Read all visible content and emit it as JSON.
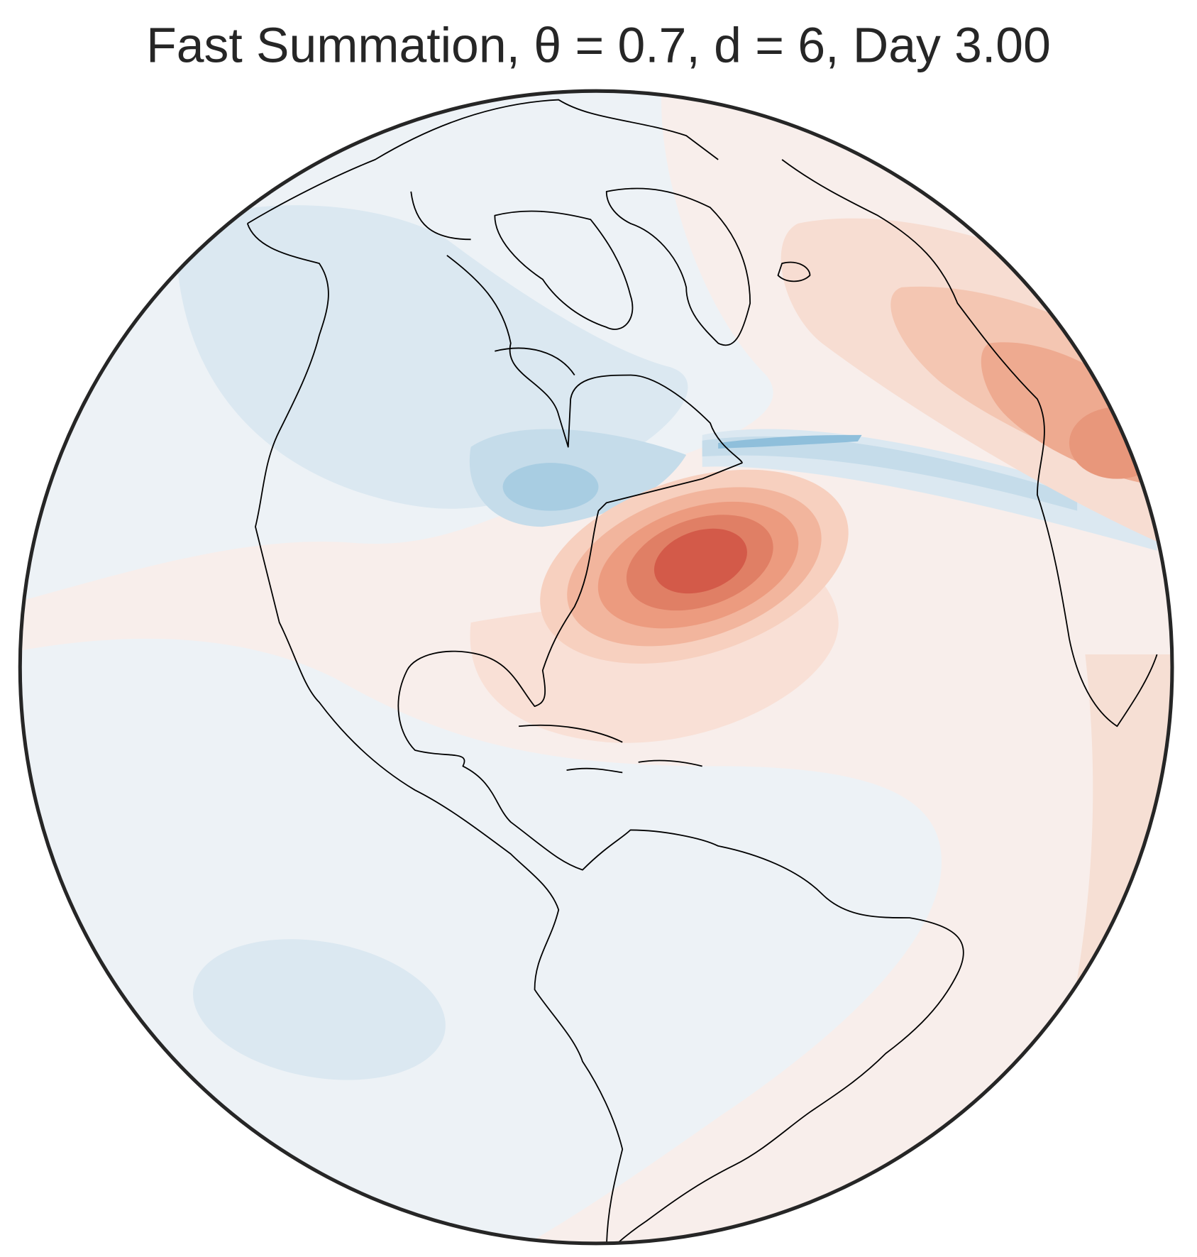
{
  "title": "Fast Summation, θ = 0.7, d = 6, Day 3.00"
}
